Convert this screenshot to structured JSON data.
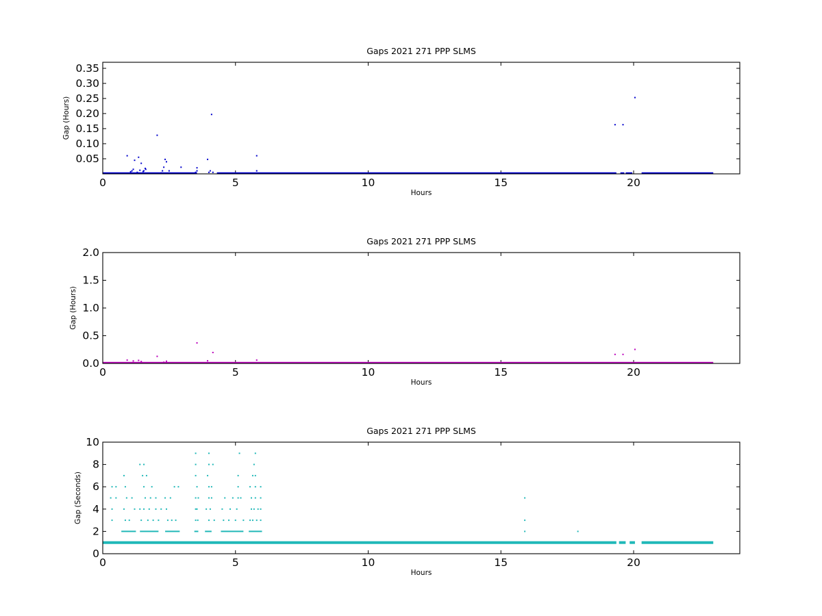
{
  "chart_data": [
    {
      "type": "scatter",
      "title": "Gaps 2021 271 PPP  SLMS",
      "xlabel": "Hours",
      "ylabel": "Gap (Hours)",
      "xlim": [
        0,
        24
      ],
      "ylim": [
        0,
        0.37
      ],
      "xticks": [
        0,
        5,
        10,
        15,
        20
      ],
      "xtick_labels": [
        "0",
        "5",
        "10",
        "15",
        "20"
      ],
      "yticks": [
        0.05,
        0.1,
        0.15,
        0.2,
        0.25,
        0.3,
        0.35
      ],
      "ytick_labels": [
        "0.05",
        "0.10",
        "0.15",
        "0.20",
        "0.25",
        "0.30",
        "0.35"
      ],
      "color": "#0000cc",
      "grid": false,
      "baseline": {
        "y": 0.0005,
        "segments": [
          [
            0,
            3.55
          ],
          [
            4.3,
            19.35
          ],
          [
            19.5,
            19.65
          ],
          [
            19.7,
            19.95
          ],
          [
            20.3,
            23.0
          ]
        ]
      },
      "series": [
        {
          "x": [
            0.92,
            1.05,
            1.15,
            1.2,
            1.35,
            1.45,
            1.52,
            1.6,
            2.05,
            2.25,
            2.3,
            2.35,
            2.4,
            2.5,
            2.95,
            3.55,
            3.55,
            3.95,
            4.0,
            4.05,
            4.1,
            4.15,
            5.8,
            5.8,
            1.1,
            1.3,
            1.4,
            1.55,
            1.62,
            2.2,
            3.5,
            19.3,
            19.6,
            20.05
          ],
          "y": [
            0.06,
            0.007,
            0.015,
            0.045,
            0.055,
            0.035,
            0.008,
            0.018,
            0.128,
            0.01,
            0.022,
            0.048,
            0.04,
            0.01,
            0.022,
            0.02,
            0.01,
            0.048,
            0.005,
            0.01,
            0.197,
            0.005,
            0.06,
            0.01,
            0.01,
            0.005,
            0.012,
            0.01,
            0.015,
            0.003,
            0.005,
            0.163,
            0.163,
            0.253
          ]
        }
      ]
    },
    {
      "type": "scatter",
      "title": "Gaps 2021 271 PPP  SLMS",
      "xlabel": "Hours",
      "ylabel": "Gap (Hours)",
      "xlim": [
        0,
        24
      ],
      "ylim": [
        0,
        2.0
      ],
      "xticks": [
        0,
        5,
        10,
        15,
        20
      ],
      "xtick_labels": [
        "0",
        "5",
        "10",
        "15",
        "20"
      ],
      "yticks": [
        0.0,
        0.5,
        1.0,
        1.5,
        2.0
      ],
      "ytick_labels": [
        "0.0",
        "0.5",
        "1.0",
        "1.5",
        "2.0"
      ],
      "color": "#bb00bb",
      "grid": false,
      "baseline": {
        "y": 0.003,
        "segments": [
          [
            0,
            23.0
          ]
        ]
      },
      "series": [
        {
          "x": [
            0.92,
            1.15,
            1.35,
            1.45,
            2.05,
            2.3,
            2.4,
            3.55,
            3.95,
            4.15,
            5.8,
            19.3,
            19.6,
            20.05
          ],
          "y": [
            0.06,
            0.045,
            0.055,
            0.035,
            0.128,
            0.022,
            0.04,
            0.37,
            0.048,
            0.197,
            0.06,
            0.163,
            0.163,
            0.253
          ]
        }
      ]
    },
    {
      "type": "scatter",
      "title": "Gaps 2021 271 PPP  SLMS",
      "xlabel": "Hours",
      "ylabel": "Gap (Seconds)",
      "xlim": [
        0,
        24
      ],
      "ylim": [
        0,
        10
      ],
      "xticks": [
        0,
        5,
        10,
        15,
        20
      ],
      "xtick_labels": [
        "0",
        "5",
        "10",
        "15",
        "20"
      ],
      "yticks": [
        0,
        2,
        4,
        6,
        8,
        10
      ],
      "ytick_labels": [
        "0",
        "2",
        "4",
        "6",
        "8",
        "10"
      ],
      "color": "#20b8b8",
      "grid": false,
      "baseline": {
        "y": 1,
        "segments": [
          [
            0,
            19.35
          ],
          [
            19.45,
            19.7
          ],
          [
            19.85,
            20.05
          ],
          [
            20.3,
            23.0
          ]
        ]
      },
      "series": [
        {
          "name": "y=2",
          "y": 2,
          "segments": [
            [
              0.7,
              1.25
            ],
            [
              1.4,
              2.1
            ],
            [
              2.35,
              2.9
            ],
            [
              3.45,
              3.6
            ],
            [
              3.85,
              4.1
            ],
            [
              4.45,
              5.3
            ],
            [
              5.5,
              6.0
            ]
          ],
          "points": [
            15.9,
            17.9
          ]
        },
        {
          "name": "y=3",
          "y": 3,
          "points": [
            0.35,
            0.85,
            1.0,
            1.45,
            1.7,
            1.9,
            2.1,
            2.45,
            2.6,
            2.75,
            3.5,
            3.58,
            4.0,
            4.2,
            4.55,
            4.75,
            5.0,
            5.3,
            5.55,
            5.65,
            5.8,
            5.95,
            15.9
          ]
        },
        {
          "name": "y=4",
          "y": 4,
          "points": [
            0.35,
            0.8,
            1.2,
            1.4,
            1.55,
            1.75,
            2.0,
            2.2,
            2.4,
            3.5,
            3.55,
            3.9,
            4.05,
            4.5,
            4.8,
            5.05,
            5.6,
            5.7,
            5.85,
            5.95
          ]
        },
        {
          "name": "y=5",
          "y": 5,
          "points": [
            0.3,
            0.5,
            0.9,
            1.1,
            1.6,
            1.8,
            2.0,
            2.35,
            2.55,
            3.5,
            3.6,
            4.0,
            4.1,
            4.6,
            4.9,
            5.1,
            5.2,
            5.6,
            5.75,
            5.95,
            15.9
          ]
        },
        {
          "name": "y=6",
          "y": 6,
          "points": [
            0.35,
            0.5,
            0.85,
            1.55,
            1.85,
            2.7,
            2.85,
            3.55,
            4.0,
            4.1,
            5.1,
            5.55,
            5.75,
            5.95
          ]
        },
        {
          "name": "y=7",
          "y": 7,
          "points": [
            0.8,
            1.5,
            1.65,
            3.5,
            3.95,
            5.1,
            5.65,
            5.75
          ]
        },
        {
          "name": "y=8",
          "y": 8,
          "points": [
            1.4,
            1.55,
            3.5,
            4.0,
            4.15,
            5.7
          ]
        },
        {
          "name": "y=9",
          "y": 9,
          "points": [
            3.5,
            4.0,
            5.15,
            5.75
          ]
        }
      ]
    }
  ]
}
